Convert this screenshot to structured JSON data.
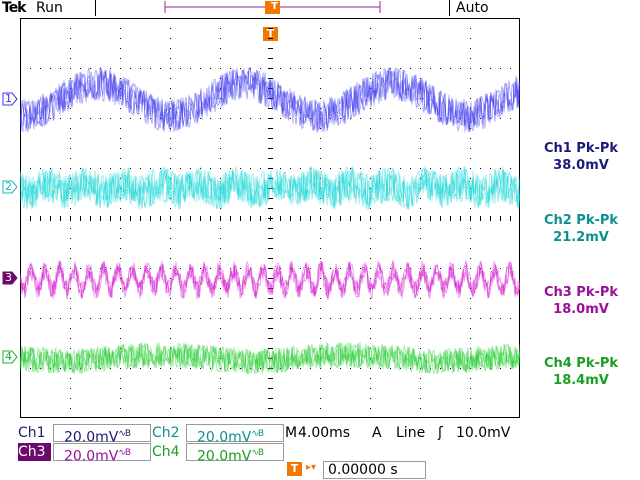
{
  "header": {
    "brand": "Tek",
    "run_state": "Run",
    "trigger_mode": "Auto",
    "trigger_marker": "T"
  },
  "channels": [
    {
      "number": "1",
      "color": "#3b35f0",
      "trace": "Ch1",
      "measure_label": "Ch1 Pk-Pk",
      "measure_value": "38.0mV",
      "scale": "20.0mV",
      "bw": "∿B"
    },
    {
      "number": "2",
      "color": "#12d6d6",
      "trace": "Ch2",
      "measure_label": "Ch2 Pk-Pk",
      "measure_value": "21.2mV",
      "scale": "20.0mV",
      "bw": "∿B"
    },
    {
      "number": "3",
      "color": "#d417cf",
      "trace": "Ch3",
      "measure_label": "Ch3 Pk-Pk",
      "measure_value": "18.0mV",
      "scale": "20.0mV",
      "bw": "∿B"
    },
    {
      "number": "4",
      "color": "#1fcc2c",
      "trace": "Ch4",
      "measure_label": "Ch4 Pk-Pk",
      "measure_value": "18.4mV",
      "scale": "20.0mV",
      "bw": "∿B"
    }
  ],
  "timebase": {
    "label": "M",
    "value": "4.00ms",
    "trigger_source_label": "A",
    "trigger_source": "Line",
    "trigger_slope": "ʃ",
    "trigger_level": "10.0mV"
  },
  "trigger_offset": {
    "marker": "T",
    "arrow": "▸▾",
    "value": "0.00000 s"
  },
  "colors": {
    "grid": "#000000",
    "trigger_orange": "#f07800",
    "ch3_label_bg": "#6b0a6a"
  }
}
